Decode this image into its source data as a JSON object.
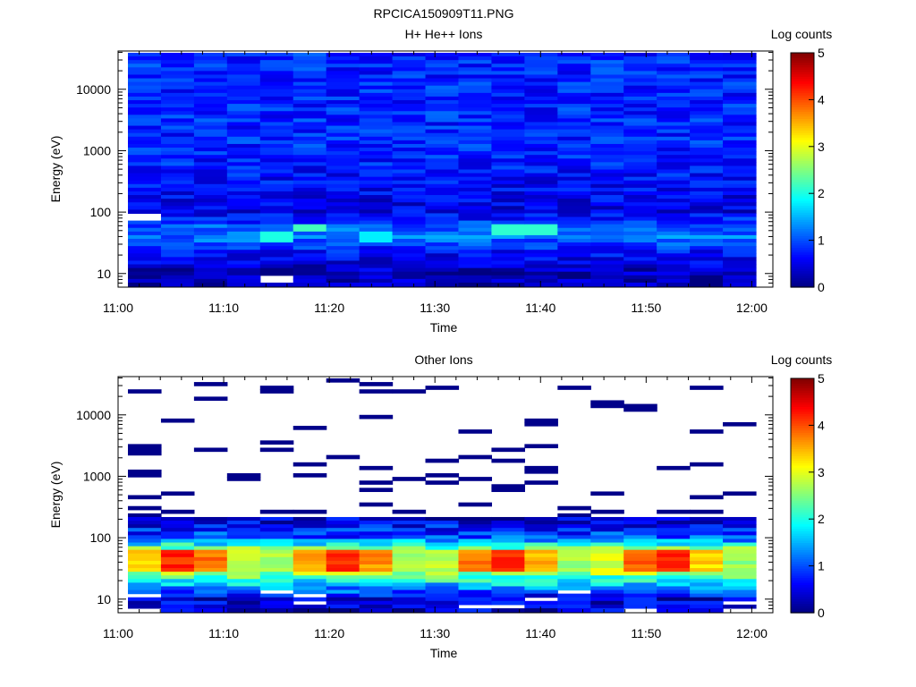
{
  "figure_title": "RPCICA150909T11.PNG",
  "chart_data": [
    {
      "type": "heatmap",
      "title": "H+ He++ Ions",
      "xlabel": "Time",
      "ylabel": "Energy (eV)",
      "x_ticks": [
        "11:00",
        "11:10",
        "11:20",
        "11:30",
        "11:40",
        "11:50",
        "12:00"
      ],
      "y_ticks": [
        "10",
        "100",
        "1000",
        "10000"
      ],
      "y_scale": "log",
      "ylim": [
        6,
        42000
      ],
      "xlim": [
        "11:00",
        "12:02"
      ],
      "colorbar": {
        "label": "Log counts",
        "ticks": [
          "0",
          "1",
          "2",
          "3",
          "4",
          "5"
        ],
        "range": [
          0,
          5
        ]
      },
      "time_bins": [
        "11:01.6",
        "11:04.8",
        "11:08.0",
        "11:11.2",
        "11:14.4",
        "11:17.6",
        "11:20.8",
        "11:24.0",
        "11:27.2",
        "11:30.4",
        "11:33.6",
        "11:36.8",
        "11:40.0",
        "11:43.2",
        "11:46.4",
        "11:49.6",
        "11:52.8",
        "11:56.0",
        "11:59.2"
      ],
      "energy_profile": [
        {
          "energy_ev": 10,
          "log_counts": 0.3
        },
        {
          "energy_ev": 20,
          "log_counts": 0.6
        },
        {
          "energy_ev": 40,
          "log_counts": 1.2
        },
        {
          "energy_ev": 60,
          "log_counts": 1.0
        },
        {
          "energy_ev": 100,
          "log_counts": 0.5
        },
        {
          "energy_ev": 1000,
          "log_counts": 0.8
        },
        {
          "energy_ev": 10000,
          "log_counts": 0.8
        }
      ],
      "features": [
        {
          "time": "11:17.6",
          "energy_ev": 55,
          "log_counts": 2.2
        },
        {
          "time": "11:14.4",
          "energy_ev": 38,
          "log_counts": 2.0
        },
        {
          "time": "11:36.8",
          "energy_ev": 52,
          "log_counts": 2.1
        },
        {
          "time": "11:40.0",
          "energy_ev": 52,
          "log_counts": 2.1
        },
        {
          "time": "11:24.0",
          "energy_ev": 38,
          "log_counts": 1.8
        }
      ],
      "empty_bins": [
        {
          "time": "11:14.4",
          "energy_ev": 8
        },
        {
          "time": "11:01.6",
          "energy_ev": 88
        }
      ]
    },
    {
      "type": "heatmap",
      "title": "Other Ions",
      "xlabel": "Time",
      "ylabel": "Energy (eV)",
      "x_ticks": [
        "11:00",
        "11:10",
        "11:20",
        "11:30",
        "11:40",
        "11:50",
        "12:00"
      ],
      "y_ticks": [
        "10",
        "100",
        "1000",
        "10000"
      ],
      "y_scale": "log",
      "ylim": [
        6,
        42000
      ],
      "xlim": [
        "11:00",
        "12:02"
      ],
      "colorbar": {
        "label": "Log counts",
        "ticks": [
          "0",
          "1",
          "2",
          "3",
          "4",
          "5"
        ],
        "range": [
          0,
          5
        ]
      },
      "time_bins": [
        "11:01.6",
        "11:04.8",
        "11:08.0",
        "11:11.2",
        "11:14.4",
        "11:17.6",
        "11:20.8",
        "11:24.0",
        "11:27.2",
        "11:30.4",
        "11:33.6",
        "11:36.8",
        "11:40.0",
        "11:43.2",
        "11:46.4",
        "11:49.6",
        "11:52.8",
        "11:56.0",
        "11:59.2"
      ],
      "energy_profile": [
        {
          "energy_ev": 10,
          "log_counts": 0.4
        },
        {
          "energy_ev": 25,
          "log_counts": 2.5
        },
        {
          "energy_ev": 40,
          "log_counts": 3.5
        },
        {
          "energy_ev": 60,
          "log_counts": 2.8
        },
        {
          "energy_ev": 100,
          "log_counts": 1.0
        },
        {
          "energy_ev": 200,
          "log_counts": 0.4
        }
      ],
      "peak_band": {
        "energy_eV_low": 28,
        "energy_eV_high": 60,
        "max_log_counts": 4.2
      },
      "sparse_above_eV": 220
    }
  ]
}
